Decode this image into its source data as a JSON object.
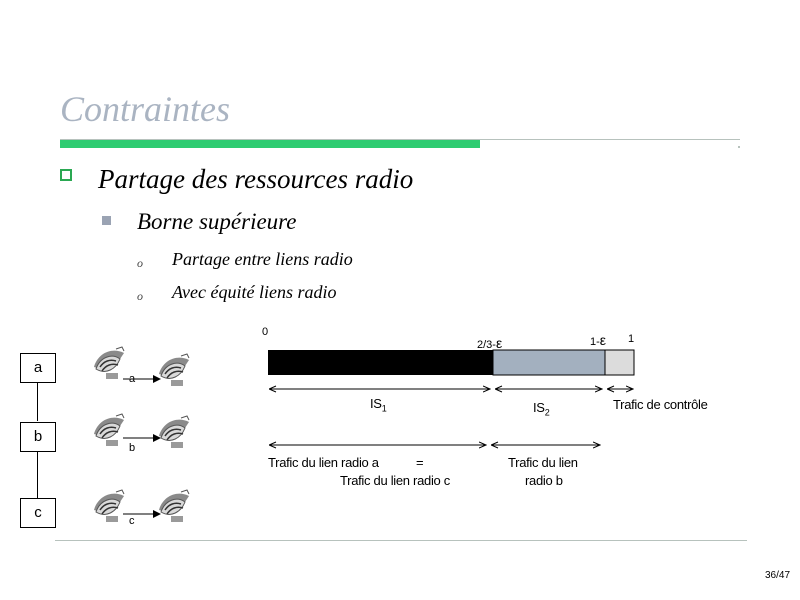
{
  "slide": {
    "title": "Contraintes",
    "bullet_level1": "Partage des ressources radio",
    "bullet_level2": "Borne supérieure",
    "bullet_level3": [
      "Partage entre liens radio",
      "Avec équité liens radio"
    ],
    "bullet_level3_marker": "o",
    "page_number": "36/47"
  },
  "topology": {
    "nodes": [
      "a",
      "b",
      "c"
    ],
    "links": [
      "a",
      "b",
      "c"
    ]
  },
  "diagram": {
    "tick_labels": {
      "zero": "0",
      "two_thirds": "2/3-",
      "one_minus": "1-",
      "one": "1",
      "epsilon": "ε"
    },
    "segments": [
      {
        "name": "IS",
        "sub": "1",
        "color": "#000000"
      },
      {
        "name": "IS",
        "sub": "2",
        "color": "#a3b0bf"
      },
      {
        "name": "Trafic de contrôle",
        "color": "#dcdcdc"
      }
    ],
    "traffic_a_line1": "Trafic du lien radio a",
    "traffic_equal": "=",
    "traffic_a_line2": "Trafic du lien radio c",
    "traffic_b_line1": "Trafic du lien",
    "traffic_b_line2": "radio b"
  }
}
